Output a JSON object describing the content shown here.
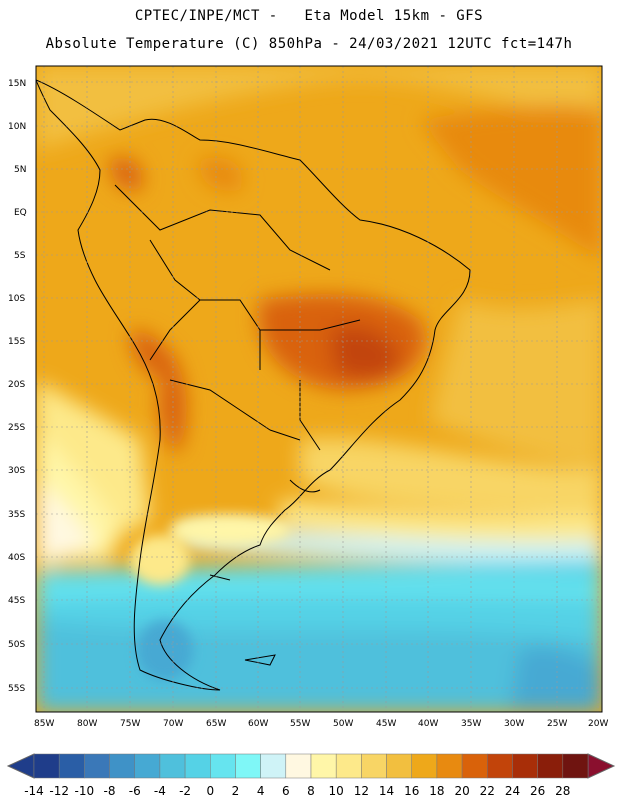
{
  "header": {
    "line1": "CPTEC/INPE/MCT -   Eta Model 15km - GFS",
    "line2": "Absolute Temperature (C) 850hPa - 24/03/2021 12UTC fct=147h"
  },
  "axes": {
    "lat_labels": [
      "15N",
      "10N",
      "5N",
      "EQ",
      "5S",
      "10S",
      "15S",
      "20S",
      "25S",
      "30S",
      "35S",
      "40S",
      "45S",
      "50S",
      "55S"
    ],
    "lon_labels": [
      "85W",
      "80W",
      "75W",
      "70W",
      "65W",
      "60W",
      "55W",
      "50W",
      "45W",
      "40W",
      "35W",
      "30W",
      "25W",
      "20W"
    ]
  },
  "colorbar": {
    "labels": [
      "-14",
      "-12",
      "-10",
      "-8",
      "-6",
      "-4",
      "-2",
      "0",
      "2",
      "4",
      "6",
      "8",
      "10",
      "12",
      "14",
      "16",
      "18",
      "20",
      "22",
      "24",
      "26",
      "28"
    ],
    "colors": [
      "#1f3d8a",
      "#2a5ea6",
      "#3a78b8",
      "#3f92c7",
      "#46a9d3",
      "#4fc0dc",
      "#55d2e6",
      "#66e4ef",
      "#7ff7f7",
      "#cff3f7",
      "#fff8e1",
      "#fff6a8",
      "#fde98a",
      "#f8d565",
      "#f2bf3f",
      "#eea81a",
      "#e88a10",
      "#d9620a",
      "#c2440a",
      "#a82e08",
      "#8a1e0a",
      "#6f1410"
    ]
  }
}
